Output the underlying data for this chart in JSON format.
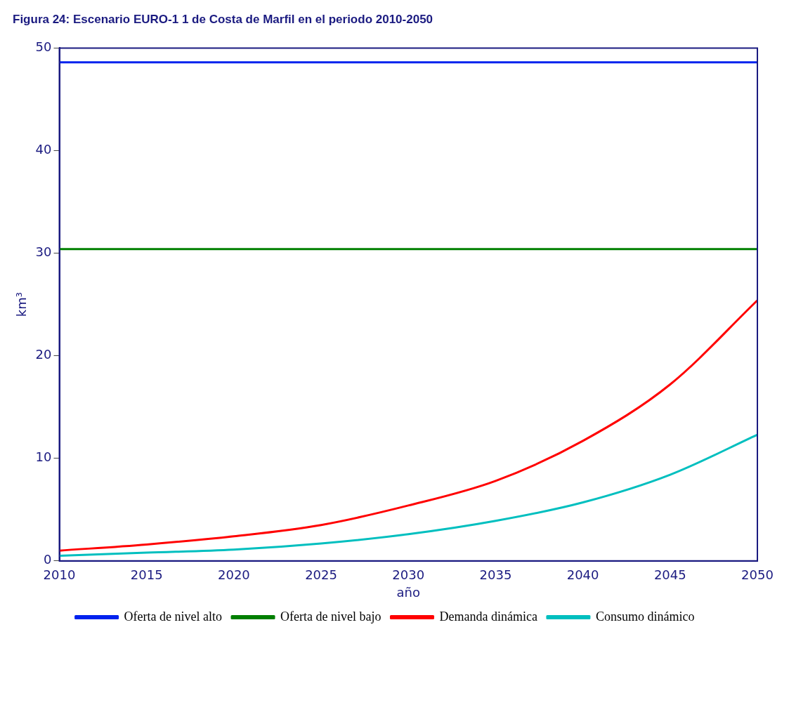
{
  "chart_data": {
    "type": "line",
    "title": "Figura 24: Escenario EURO-1 1 de Costa de Marfil en el periodo 2010-2050",
    "xlabel": "año",
    "ylabel": "km³",
    "x": [
      2010,
      2015,
      2020,
      2025,
      2030,
      2035,
      2040,
      2045,
      2050
    ],
    "series": [
      {
        "name": "Oferta de nivel alto",
        "color": "#0022ee",
        "values": [
          48.6,
          48.6,
          48.6,
          48.6,
          48.6,
          48.6,
          48.6,
          48.6,
          48.6
        ]
      },
      {
        "name": "Oferta de nivel bajo",
        "color": "#007f00",
        "values": [
          30.4,
          30.4,
          30.4,
          30.4,
          30.4,
          30.4,
          30.4,
          30.4,
          30.4
        ]
      },
      {
        "name": "Demanda dinámica",
        "color": "#ff0000",
        "values": [
          1.0,
          1.6,
          2.4,
          3.5,
          5.4,
          7.8,
          11.7,
          17.2,
          25.4
        ]
      },
      {
        "name": "Consumo dinámico",
        "color": "#00bfbf",
        "values": [
          0.5,
          0.8,
          1.1,
          1.7,
          2.6,
          3.9,
          5.7,
          8.4,
          12.3
        ]
      }
    ],
    "xlim": [
      2010,
      2050
    ],
    "xticks": [
      2010,
      2015,
      2020,
      2025,
      2030,
      2035,
      2040,
      2045,
      2050
    ],
    "ylim": [
      0,
      50
    ],
    "yticks": [
      0,
      10,
      20,
      30,
      40,
      50
    ],
    "grid": false,
    "legend": "bottom",
    "marker": "none",
    "line_style": "solid"
  }
}
